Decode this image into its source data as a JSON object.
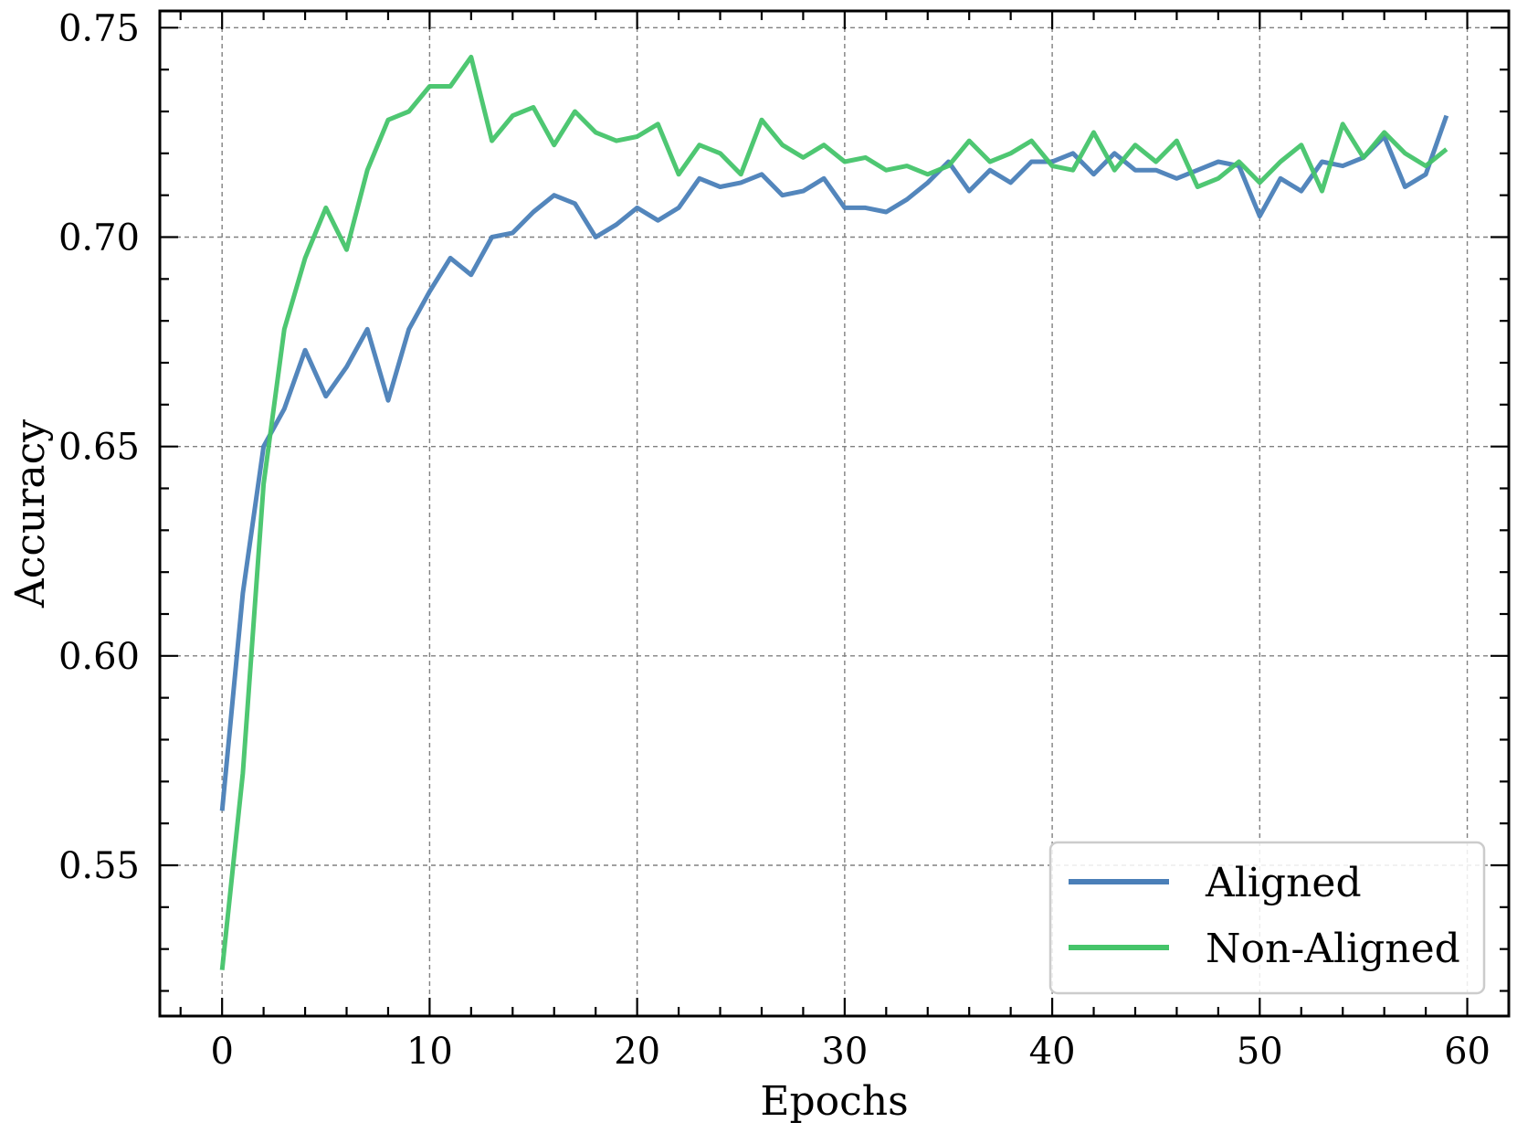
{
  "chart_data": {
    "type": "line",
    "title": "",
    "xlabel": "Epochs",
    "ylabel": "Accuracy",
    "xlim": [
      -3,
      62
    ],
    "ylim": [
      0.514,
      0.754
    ],
    "x_ticks": [
      0,
      10,
      20,
      30,
      40,
      50,
      60
    ],
    "x_tick_labels": [
      "0",
      "10",
      "20",
      "30",
      "40",
      "50",
      "60"
    ],
    "y_ticks": [
      0.55,
      0.6,
      0.65,
      0.7,
      0.75
    ],
    "y_tick_labels": [
      "0.55",
      "0.60",
      "0.65",
      "0.70",
      "0.75"
    ],
    "grid": true,
    "legend_position": "bottom-right",
    "x": [
      0,
      1,
      2,
      3,
      4,
      5,
      6,
      7,
      8,
      9,
      10,
      11,
      12,
      13,
      14,
      15,
      16,
      17,
      18,
      19,
      20,
      21,
      22,
      23,
      24,
      25,
      26,
      27,
      28,
      29,
      30,
      31,
      32,
      33,
      34,
      35,
      36,
      37,
      38,
      39,
      40,
      41,
      42,
      43,
      44,
      45,
      46,
      47,
      48,
      49,
      50,
      51,
      52,
      53,
      54,
      55,
      56,
      57,
      58,
      59
    ],
    "series": [
      {
        "name": "Aligned",
        "color": "#4a7fb8",
        "values": [
          0.563,
          0.615,
          0.65,
          0.659,
          0.673,
          0.662,
          0.669,
          0.678,
          0.661,
          0.678,
          0.687,
          0.695,
          0.691,
          0.7,
          0.701,
          0.706,
          0.71,
          0.708,
          0.7,
          0.703,
          0.707,
          0.704,
          0.707,
          0.714,
          0.712,
          0.713,
          0.715,
          0.71,
          0.711,
          0.714,
          0.707,
          0.707,
          0.706,
          0.709,
          0.713,
          0.718,
          0.711,
          0.716,
          0.713,
          0.718,
          0.718,
          0.72,
          0.715,
          0.72,
          0.716,
          0.716,
          0.714,
          0.716,
          0.718,
          0.717,
          0.705,
          0.714,
          0.711,
          0.718,
          0.717,
          0.719,
          0.724,
          0.712,
          0.715,
          0.729
        ]
      },
      {
        "name": "Non-Aligned",
        "color": "#45c46a",
        "values": [
          0.525,
          0.572,
          0.641,
          0.678,
          0.695,
          0.707,
          0.697,
          0.716,
          0.728,
          0.73,
          0.736,
          0.736,
          0.743,
          0.723,
          0.729,
          0.731,
          0.722,
          0.73,
          0.725,
          0.723,
          0.724,
          0.727,
          0.715,
          0.722,
          0.72,
          0.715,
          0.728,
          0.722,
          0.719,
          0.722,
          0.718,
          0.719,
          0.716,
          0.717,
          0.715,
          0.717,
          0.723,
          0.718,
          0.72,
          0.723,
          0.717,
          0.716,
          0.725,
          0.716,
          0.722,
          0.718,
          0.723,
          0.712,
          0.714,
          0.718,
          0.713,
          0.718,
          0.722,
          0.711,
          0.727,
          0.719,
          0.725,
          0.72,
          0.717,
          0.721
        ]
      }
    ]
  }
}
